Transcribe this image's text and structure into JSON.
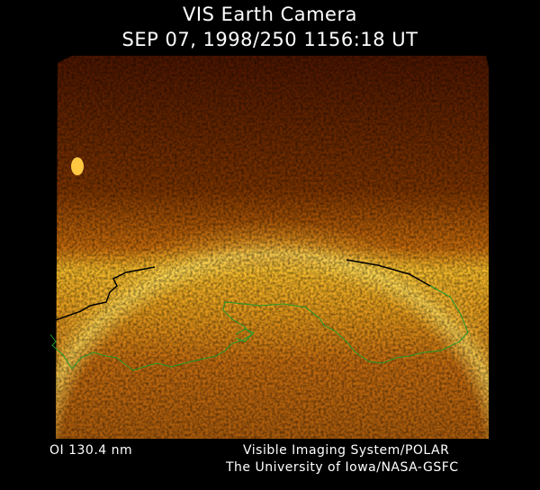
{
  "header": {
    "title": "VIS Earth Camera",
    "timestamp": "SEP 07, 1998/250 1156:18 UT"
  },
  "footer": {
    "band": "OI  130.4 nm",
    "instrument": "Visible Imaging System/POLAR",
    "institution": "The University of Iowa/NASA-GSFC"
  },
  "colors": {
    "background": "#000000",
    "dark_sky": "#5a1e00",
    "auroral_oval": "#ffd23c",
    "dayside": "#c86a10",
    "coastline": "#1f9a2a",
    "terminator": "#000000"
  }
}
